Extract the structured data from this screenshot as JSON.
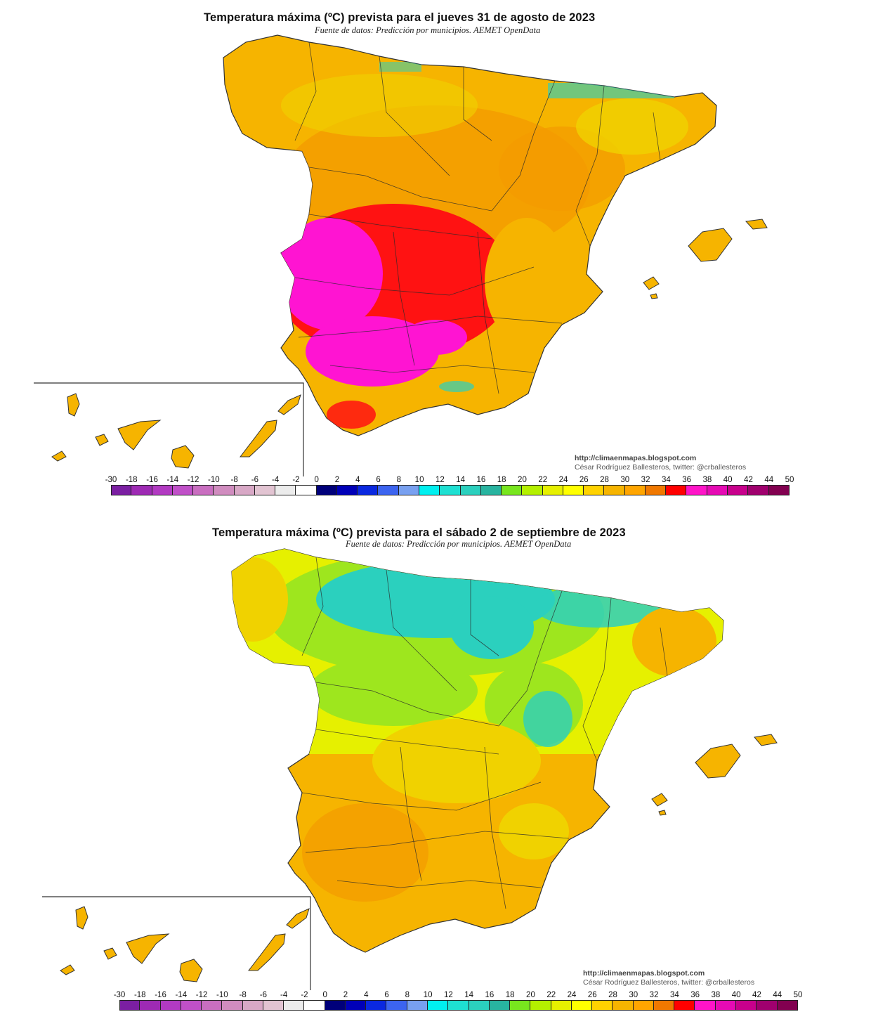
{
  "maps": [
    {
      "title": "Temperatura máxima (ºC) prevista para el jueves 31 de agosto de 2023",
      "subtitle": "Fuente de datos: Predicción por municipios. AEMET OpenData",
      "credit_url": "http://climaenmapas.blogspot.com",
      "credit_author": "César Rodríguez Ballesteros, twitter: @crballesteros",
      "dominant_colors": [
        "#f6b400",
        "#f39a00",
        "#ff1212",
        "#ff14d2",
        "#f0d200",
        "#2bd0be"
      ]
    },
    {
      "title": "Temperatura máxima (ºC) prevista para el sábado 2 de septiembre de 2023",
      "subtitle": "Fuente de datos: Predicción por municipios. AEMET OpenData",
      "credit_url": "http://climaenmapas.blogspot.com",
      "credit_author": "César Rodríguez Ballesteros, twitter: @crballesteros",
      "dominant_colors": [
        "#f6b400",
        "#f0d200",
        "#e6f000",
        "#9ee61e",
        "#2bd0be"
      ]
    }
  ],
  "legend": {
    "unit": "ºC",
    "ticks": [
      "-30",
      "-18",
      "-16",
      "-14",
      "-12",
      "-10",
      "-8",
      "-6",
      "-4",
      "-2",
      "0",
      "2",
      "4",
      "6",
      "8",
      "10",
      "12",
      "14",
      "16",
      "18",
      "20",
      "22",
      "24",
      "26",
      "28",
      "30",
      "32",
      "34",
      "36",
      "38",
      "40",
      "42",
      "44",
      "50"
    ],
    "colors": [
      "#7b1fa2",
      "#9e2ab4",
      "#b23ac2",
      "#c050c8",
      "#c96ec0",
      "#d08cbf",
      "#d8a8c6",
      "#e2c4d2",
      "#ececec",
      "#ffffff",
      "#00007a",
      "#0000b8",
      "#0a28e0",
      "#3c64f0",
      "#78a0f0",
      "#00f0f0",
      "#1ee0d2",
      "#2bd0be",
      "#28b4a0",
      "#78e61e",
      "#b4f000",
      "#e6f000",
      "#ffff00",
      "#ffd200",
      "#f6b400",
      "#ffa500",
      "#f07800",
      "#ff0000",
      "#ff14c8",
      "#e60ab4",
      "#c8008c",
      "#a0006e",
      "#820050"
    ]
  }
}
